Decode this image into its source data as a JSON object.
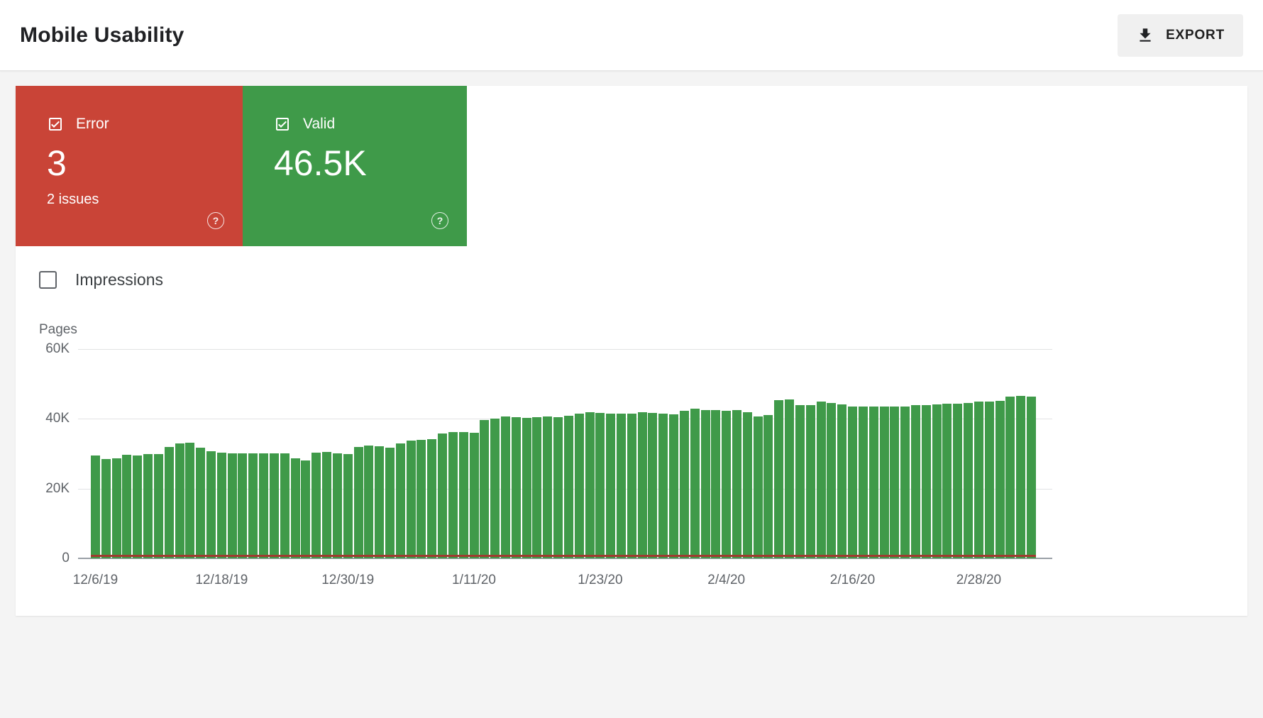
{
  "header": {
    "title": "Mobile Usability",
    "export_label": "EXPORT"
  },
  "summary_cards": {
    "error": {
      "label": "Error",
      "value": "3",
      "subtext": "2 issues",
      "color": "#c94437",
      "checked": true
    },
    "valid": {
      "label": "Valid",
      "value": "46.5K",
      "color": "#3f9a49",
      "checked": true
    }
  },
  "filters": {
    "impressions_label": "Impressions",
    "impressions_checked": false
  },
  "chart_data": {
    "type": "bar",
    "title": "",
    "ylabel": "Pages",
    "xlabel": "",
    "ylim": [
      0,
      60000
    ],
    "grid": true,
    "ytick_labels": [
      "60K",
      "40K",
      "20K",
      "0"
    ],
    "x_tick_labels": [
      {
        "index": 0,
        "label": "12/6/19"
      },
      {
        "index": 12,
        "label": "12/18/19"
      },
      {
        "index": 24,
        "label": "12/30/19"
      },
      {
        "index": 36,
        "label": "1/11/20"
      },
      {
        "index": 48,
        "label": "1/23/20"
      },
      {
        "index": 60,
        "label": "2/4/20"
      },
      {
        "index": 72,
        "label": "2/16/20"
      },
      {
        "index": 84,
        "label": "2/28/20"
      }
    ],
    "series": [
      {
        "name": "Valid",
        "color": "#3f9a49",
        "unit": "pages, thousands",
        "values_k": [
          29.5,
          28.5,
          28.7,
          29.8,
          29.6,
          29.9,
          30.0,
          31.9,
          33.0,
          33.1,
          31.8,
          30.7,
          30.4,
          30.2,
          30.1,
          30.2,
          30.1,
          30.2,
          30.1,
          28.6,
          28.1,
          30.4,
          30.6,
          30.1,
          29.9,
          32.0,
          32.3,
          32.1,
          31.8,
          32.9,
          33.8,
          33.9,
          34.2,
          35.9,
          36.2,
          36.3,
          36.1,
          39.7,
          40.1,
          40.6,
          40.5,
          40.2,
          40.4,
          40.6,
          40.5,
          40.9,
          41.5,
          41.9,
          41.8,
          41.6,
          41.5,
          41.6,
          41.9,
          41.8,
          41.5,
          41.2,
          42.4,
          42.9,
          42.6,
          42.5,
          42.4,
          42.5,
          42.0,
          40.6,
          41.0,
          45.4,
          45.6,
          43.9,
          44.0,
          44.9,
          44.5,
          44.1,
          43.6,
          43.5,
          43.6,
          43.5,
          43.6,
          43.5,
          43.9,
          44.0,
          44.2,
          44.3,
          44.4,
          44.5,
          44.9,
          45.0,
          45.2,
          46.4,
          46.5,
          46.3
        ]
      },
      {
        "name": "Error",
        "color": "#a03b30",
        "value_constant": 3
      }
    ]
  }
}
